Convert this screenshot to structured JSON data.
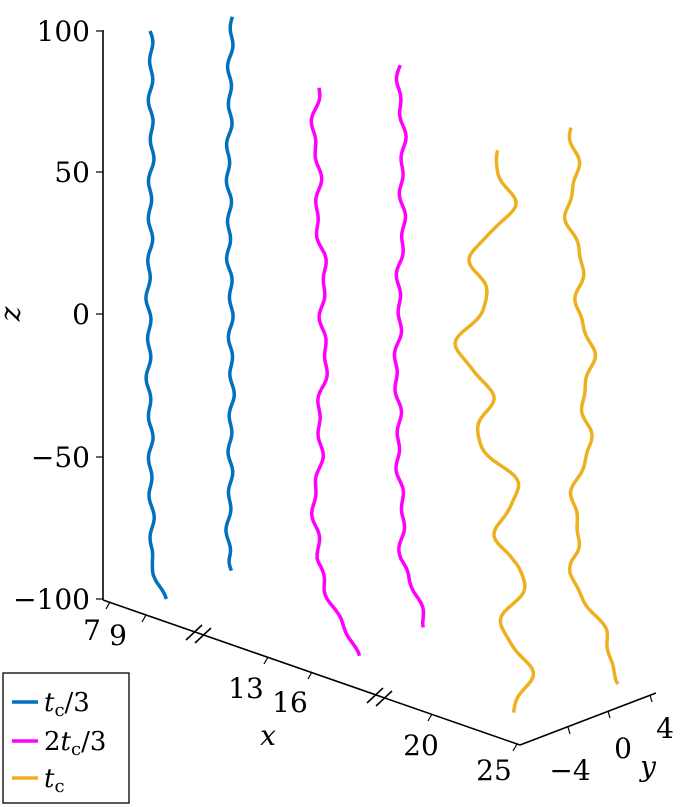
{
  "chart_data": {
    "type": "line",
    "dimensions": 3,
    "title": "",
    "axes": {
      "x": {
        "label": "x",
        "ticks": [
          "7",
          "9",
          "13",
          "16",
          "20",
          "25"
        ],
        "broken": true
      },
      "y": {
        "label": "y",
        "ticks": [
          "−4",
          "0",
          "4"
        ],
        "range": [
          -4,
          4
        ]
      },
      "z": {
        "label": "z",
        "ticks": [
          "100",
          "50",
          "0",
          "−50",
          "−100"
        ],
        "range": [
          -100,
          100
        ]
      }
    },
    "grid": false,
    "legend": {
      "placement": "bottom-left",
      "entries": [
        {
          "label_main": "t",
          "label_sub": "c",
          "label_suffix": "/3",
          "label_prefix": "",
          "color": "#0072BD"
        },
        {
          "label_main": "t",
          "label_sub": "c",
          "label_suffix": "/3",
          "label_prefix": "2",
          "color": "#FF00FF"
        },
        {
          "label_main": "t",
          "label_sub": "c",
          "label_suffix": "",
          "label_prefix": "",
          "color": "#EDB120"
        }
      ]
    },
    "series": [
      {
        "group": "tc/3",
        "x": 8,
        "color": "#0072BD",
        "z_range": [
          -100,
          100
        ],
        "wiggle": 2
      },
      {
        "group": "tc/3",
        "x": 10,
        "color": "#0072BD",
        "z_range": [
          -90,
          105
        ],
        "wiggle": 2
      },
      {
        "group": "2tc/3",
        "x": 14,
        "color": "#FF00FF",
        "z_range": [
          -120,
          80
        ],
        "wiggle": 6
      },
      {
        "group": "2tc/3",
        "x": 17,
        "color": "#FF00FF",
        "z_range": [
          -110,
          88
        ],
        "wiggle": 4
      },
      {
        "group": "tc",
        "x": 22,
        "color": "#EDB120",
        "z_range": [
          -140,
          58
        ],
        "wiggle": 28
      },
      {
        "group": "tc",
        "x": 25,
        "color": "#EDB120",
        "z_range": [
          -130,
          66
        ],
        "wiggle": 12
      }
    ]
  }
}
